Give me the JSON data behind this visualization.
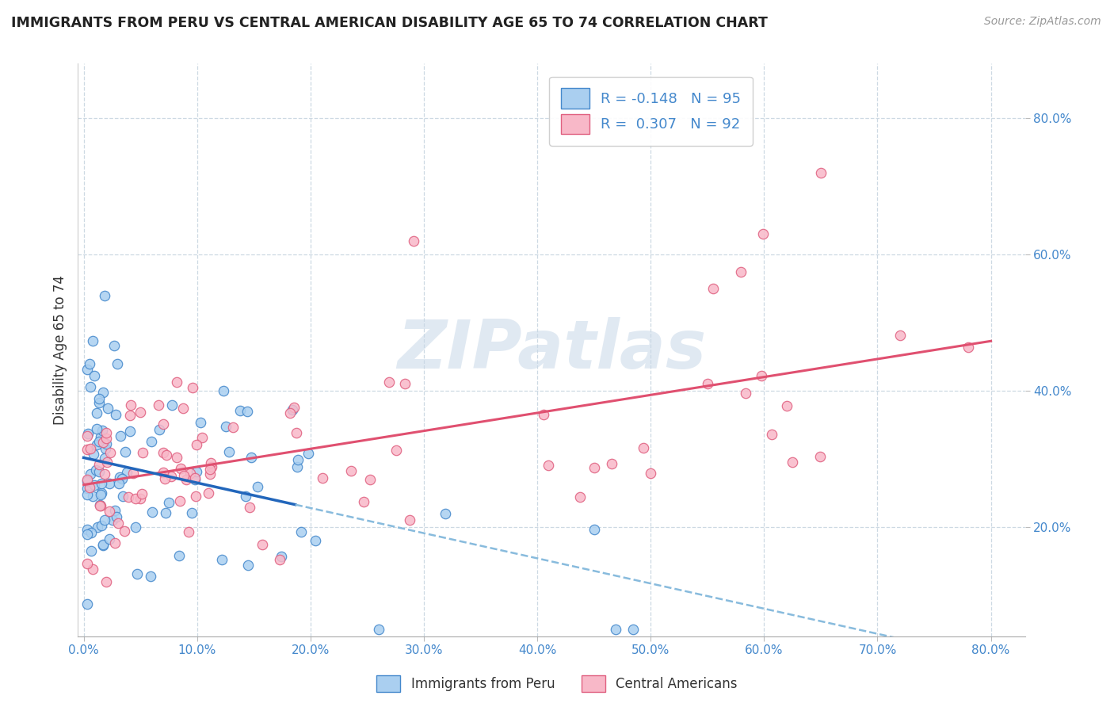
{
  "title": "IMMIGRANTS FROM PERU VS CENTRAL AMERICAN DISABILITY AGE 65 TO 74 CORRELATION CHART",
  "source_text": "Source: ZipAtlas.com",
  "ylabel": "Disability Age 65 to 74",
  "xlim": [
    -0.005,
    0.83
  ],
  "ylim": [
    0.04,
    0.88
  ],
  "x_ticks": [
    0.0,
    0.1,
    0.2,
    0.3,
    0.4,
    0.5,
    0.6,
    0.7,
    0.8
  ],
  "x_tick_labels": [
    "0.0%",
    "10.0%",
    "20.0%",
    "30.0%",
    "40.0%",
    "50.0%",
    "60.0%",
    "70.0%",
    "80.0%"
  ],
  "y_ticks": [
    0.2,
    0.4,
    0.6,
    0.8
  ],
  "y_tick_labels": [
    "20.0%",
    "40.0%",
    "60.0%",
    "80.0%"
  ],
  "legend_label_peru": "Immigrants from Peru",
  "legend_label_central": "Central Americans",
  "R_peru": -0.148,
  "N_peru": 95,
  "R_central": 0.307,
  "N_central": 92,
  "color_peru": "#aacff0",
  "color_central": "#f8b8c8",
  "edge_color_peru": "#4488cc",
  "edge_color_central": "#e06080",
  "line_color_peru_solid": "#2266bb",
  "line_color_peru_dashed": "#88bbdd",
  "line_color_central": "#e05070",
  "watermark": "ZIPatlas",
  "watermark_color": "#c8d8e8",
  "background_color": "#ffffff",
  "grid_color": "#c8d5e0",
  "title_color": "#222222",
  "axis_label_color": "#333333",
  "tick_color": "#4488cc"
}
